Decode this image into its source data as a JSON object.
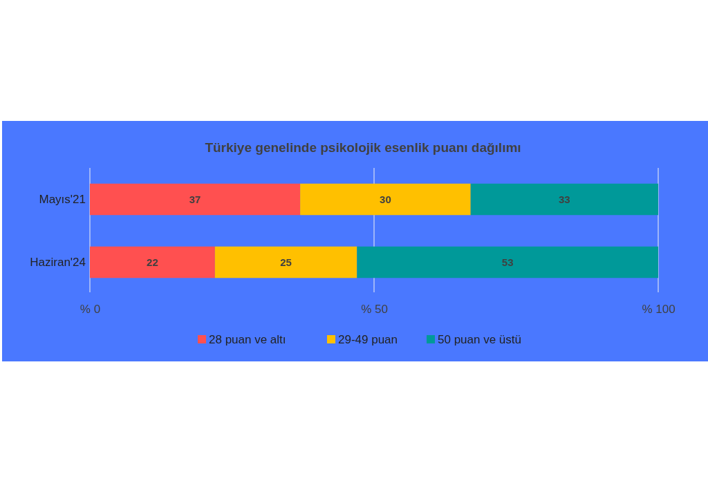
{
  "chart_data": {
    "type": "bar",
    "orientation": "horizontal",
    "stacked": true,
    "title": "Türkiye genelinde psikolojik esenlik puanı dağılımı",
    "categories": [
      "Mayıs'21",
      "Haziran'24"
    ],
    "series": [
      {
        "name": "28 puan ve altı",
        "color": "#ff5050",
        "values": [
          37,
          22
        ]
      },
      {
        "name": "29-49 puan",
        "color": "#ffc000",
        "values": [
          30,
          25
        ]
      },
      {
        "name": "50 puan ve üstü",
        "color": "#009999",
        "values": [
          33,
          53
        ]
      }
    ],
    "xlim": [
      0,
      100
    ],
    "xticks": [
      {
        "value": 0,
        "label": "% 0"
      },
      {
        "value": 50,
        "label": "% 50"
      },
      {
        "value": 100,
        "label": "% 100"
      }
    ],
    "grid": "x",
    "legend": "bottom",
    "data_labels": true
  }
}
